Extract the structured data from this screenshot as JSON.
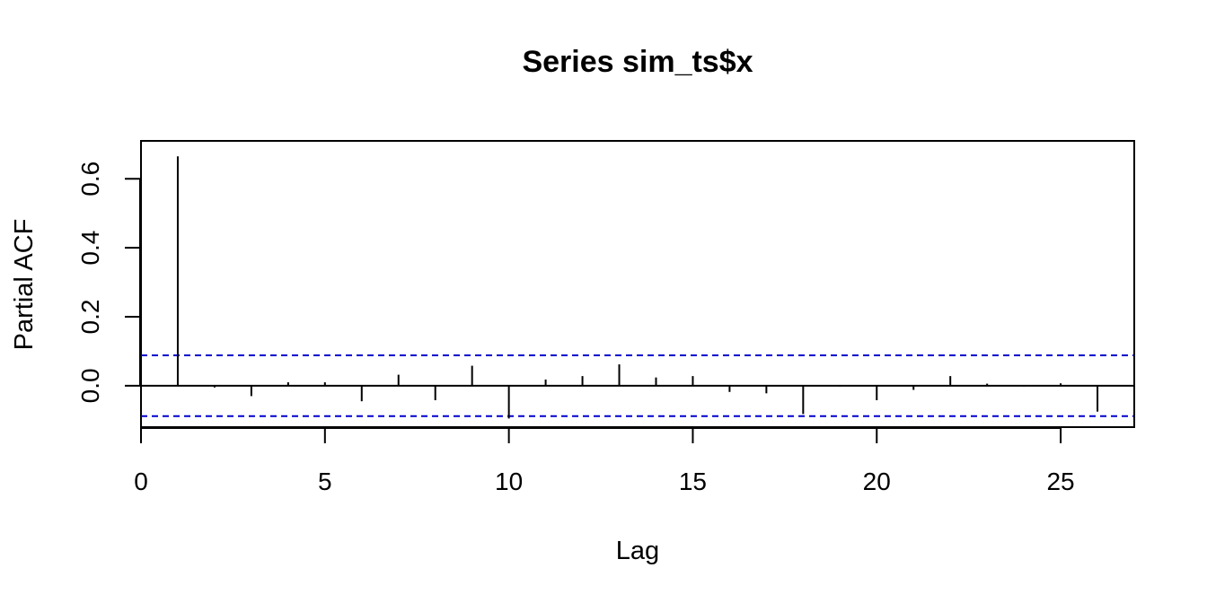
{
  "chart_data": {
    "type": "bar",
    "title": "Series  sim_ts$x",
    "xlabel": "Lag",
    "ylabel": "Partial ACF",
    "xlim": [
      0,
      27
    ],
    "ylim": [
      -0.12,
      0.71
    ],
    "x_ticks": [
      0,
      5,
      10,
      15,
      20,
      25
    ],
    "x_tick_labels": [
      "0",
      "5",
      "10",
      "15",
      "20",
      "25"
    ],
    "y_ticks": [
      0.0,
      0.2,
      0.4,
      0.6
    ],
    "y_tick_labels": [
      "0.0",
      "0.2",
      "0.4",
      "0.6"
    ],
    "lags": [
      1,
      2,
      3,
      4,
      5,
      6,
      7,
      8,
      9,
      10,
      11,
      12,
      13,
      14,
      15,
      16,
      17,
      18,
      19,
      20,
      21,
      22,
      23,
      24,
      25,
      26
    ],
    "values": [
      0.665,
      -0.005,
      -0.03,
      0.01,
      0.01,
      -0.045,
      0.032,
      -0.042,
      0.058,
      -0.095,
      0.018,
      0.028,
      0.062,
      0.024,
      0.028,
      -0.018,
      -0.022,
      -0.082,
      -0.002,
      -0.042,
      -0.012,
      0.028,
      0.006,
      -0.002,
      0.007,
      -0.075
    ],
    "confidence_bounds": [
      0.088,
      -0.088
    ],
    "colors": {
      "bars": "#000000",
      "bounds": "#0000cd",
      "zero_line": "#000000"
    }
  }
}
